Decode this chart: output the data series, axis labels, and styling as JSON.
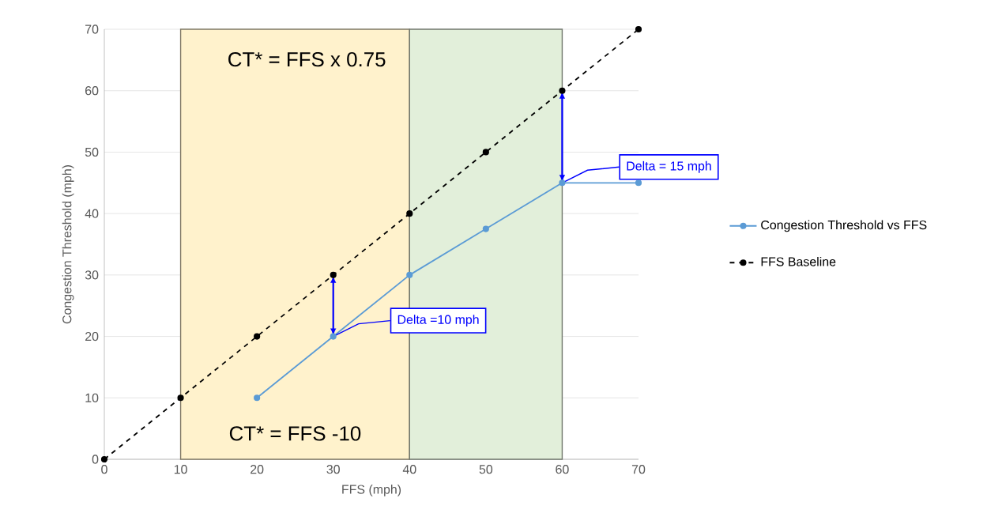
{
  "chart_data": {
    "type": "line",
    "xlabel": "FFS (mph)",
    "ylabel": "Congestion Threshold (mph)",
    "series": [
      {
        "name": "Congestion Threshold vs FFS",
        "color": "#5b9bd5",
        "x": [
          20,
          30,
          40,
          50,
          60,
          70
        ],
        "values": [
          10,
          20,
          30,
          37.5,
          45,
          45
        ],
        "line_style": "solid"
      },
      {
        "name": "FFS Baseline",
        "color": "#000000",
        "x": [
          0,
          10,
          20,
          30,
          40,
          50,
          60,
          70
        ],
        "values": [
          0,
          10,
          20,
          30,
          40,
          50,
          60,
          70
        ],
        "line_style": "dashed"
      }
    ],
    "xlim": [
      0,
      70
    ],
    "xticks": [
      0,
      10,
      20,
      30,
      40,
      50,
      60,
      70
    ],
    "ylim": [
      0,
      70
    ],
    "yticks": [
      0,
      10,
      20,
      30,
      40,
      50,
      60,
      70
    ],
    "grid": "y",
    "legend": "right",
    "marker": "circle",
    "bands": [
      {
        "axis": "x",
        "from": 10,
        "to": 40,
        "label": "CT* = FFS -10",
        "color": "#fff2cc"
      },
      {
        "axis": "x",
        "from": 40,
        "to": 60,
        "color": "#e2efda"
      }
    ],
    "annotations": [
      "CT* = FFS x 0.75",
      {
        "text": "Delta =10 mph",
        "x": 30,
        "y": 20
      },
      {
        "text": "Delta = 15 mph",
        "x": 60,
        "y": 45
      }
    ]
  }
}
